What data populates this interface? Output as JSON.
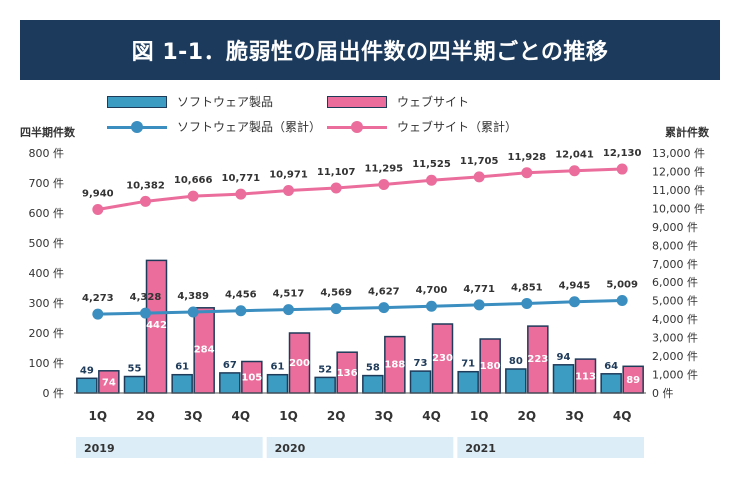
{
  "title": "図 1-1．脆弱性の届出件数の四半期ごとの推移",
  "legend": {
    "software": "ソフトウェア製品",
    "website": "ウェブサイト",
    "software_cum": "ソフトウェア製品（累計）",
    "website_cum": "ウェブサイト（累計）"
  },
  "colors": {
    "title_bg": "#1c3a5c",
    "software_bar": "#3d9cc2",
    "website_bar": "#ea6d9b",
    "software_line": "#3a8ec0",
    "website_line": "#ea6d9b",
    "bar_outline": "#1f3b5a",
    "year_band": "#dcedf7"
  },
  "chart_data": {
    "type": "bar",
    "title": "図 1-1．脆弱性の届出件数の四半期ごとの推移",
    "ylabel_left": "四半期件数",
    "ylabel_right": "累計件数",
    "ylim_left": [
      0,
      800
    ],
    "ylim_right": [
      0,
      13000
    ],
    "yticks_left": [
      "0 件",
      "100 件",
      "200 件",
      "300 件",
      "400 件",
      "500 件",
      "600 件",
      "700 件",
      "800 件"
    ],
    "yticks_right": [
      "0 件",
      "1,000 件",
      "2,000 件",
      "3,000 件",
      "4,000 件",
      "5,000 件",
      "6,000 件",
      "7,000 件",
      "8,000 件",
      "9,000 件",
      "10,000 件",
      "11,000 件",
      "12,000 件",
      "13,000 件"
    ],
    "categories": [
      "1Q",
      "2Q",
      "3Q",
      "4Q",
      "1Q",
      "2Q",
      "3Q",
      "4Q",
      "1Q",
      "2Q",
      "3Q",
      "4Q"
    ],
    "years": [
      {
        "label": "2019",
        "start": 0,
        "end": 3
      },
      {
        "label": "2020",
        "start": 4,
        "end": 7
      },
      {
        "label": "2021",
        "start": 8,
        "end": 11
      }
    ],
    "series": [
      {
        "name": "ソフトウェア製品",
        "type": "bar",
        "axis": "left",
        "values": [
          49,
          55,
          61,
          67,
          61,
          52,
          58,
          73,
          71,
          80,
          94,
          64
        ],
        "labels": [
          "49",
          "55",
          "61",
          "67",
          "61",
          "52",
          "58",
          "73",
          "71",
          "80",
          "94",
          "64"
        ]
      },
      {
        "name": "ウェブサイト",
        "type": "bar",
        "axis": "left",
        "values": [
          74,
          442,
          284,
          105,
          200,
          136,
          188,
          230,
          180,
          223,
          113,
          89
        ],
        "labels": [
          "74",
          "442",
          "284",
          "105",
          "200",
          "136",
          "188",
          "230",
          "180",
          "223",
          "113",
          "89"
        ]
      },
      {
        "name": "ソフトウェア製品（累計）",
        "type": "line",
        "axis": "right",
        "values": [
          4273,
          4328,
          4389,
          4456,
          4517,
          4569,
          4627,
          4700,
          4771,
          4851,
          4945,
          5009
        ],
        "labels": [
          "4,273",
          "4,328",
          "4,389",
          "4,456",
          "4,517",
          "4,569",
          "4,627",
          "4,700",
          "4,771",
          "4,851",
          "4,945",
          "5,009"
        ]
      },
      {
        "name": "ウェブサイト（累計）",
        "type": "line",
        "axis": "right",
        "values": [
          9940,
          10382,
          10666,
          10771,
          10971,
          11107,
          11295,
          11525,
          11705,
          11928,
          12041,
          12130
        ],
        "labels": [
          "9,940",
          "10,382",
          "10,666",
          "10,771",
          "10,971",
          "11,107",
          "11,295",
          "11,525",
          "11,705",
          "11,928",
          "12,041",
          "12,130"
        ]
      }
    ],
    "grid": false,
    "legend_position": "top"
  }
}
